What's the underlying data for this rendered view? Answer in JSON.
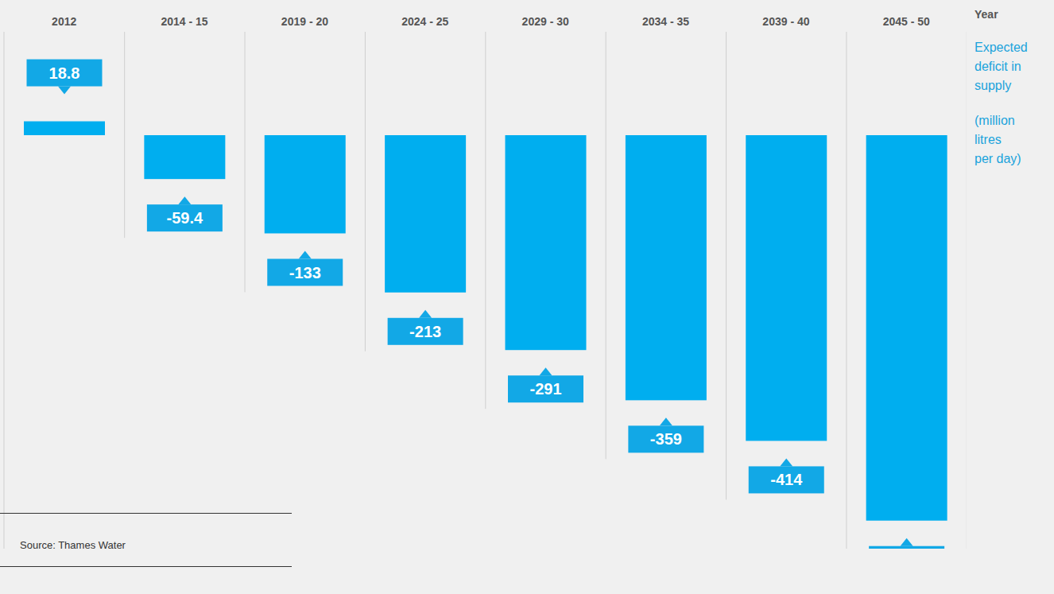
{
  "chart_data": {
    "type": "bar",
    "categories": [
      "2012",
      "2014 - 15",
      "2019 - 20",
      "2024 - 25",
      "2029 - 30",
      "2034 - 35",
      "2039 - 40",
      "2045 - 50"
    ],
    "values": [
      18.8,
      -59.4,
      -133,
      -213,
      -291,
      -359,
      -414,
      -522
    ],
    "color": "#00aeef",
    "x_label": "Year",
    "y_label": "Expected deficit in supply (million litres per day)",
    "source": "Source: Thames Water",
    "ylim": [
      -560,
      140
    ],
    "data_labels": true,
    "tick_labels": "x"
  }
}
